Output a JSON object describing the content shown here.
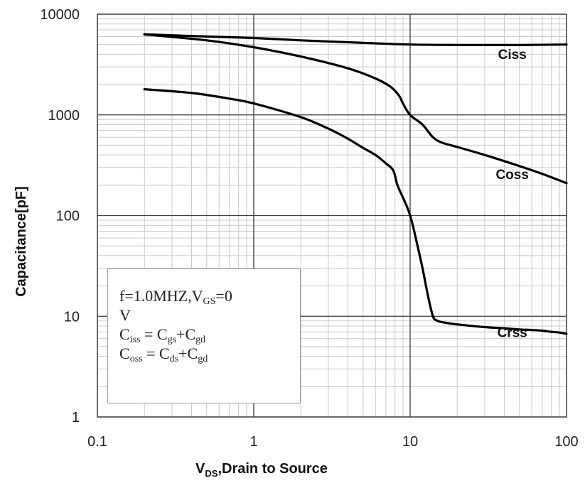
{
  "chart_data": {
    "type": "line",
    "x_scale": "log",
    "y_scale": "log",
    "xlim": [
      0.1,
      100
    ],
    "ylim": [
      1,
      10000
    ],
    "grid": true,
    "x_ticks": [
      "0.1",
      "1",
      "10",
      "100"
    ],
    "y_ticks": [
      "1",
      "10",
      "100",
      "1000",
      "10000"
    ],
    "ylabel": "Capacitance[pF]",
    "xlabel": {
      "main": "V",
      "sub": "DS",
      "rest": ",Drain to Source"
    },
    "series": [
      {
        "name": "Ciss",
        "label_at": [
          45,
          3600
        ],
        "points": [
          [
            0.2,
            6300
          ],
          [
            0.5,
            6000
          ],
          [
            1,
            5800
          ],
          [
            2,
            5500
          ],
          [
            5,
            5200
          ],
          [
            10,
            5000
          ],
          [
            20,
            4950
          ],
          [
            50,
            4950
          ],
          [
            100,
            5000
          ]
        ]
      },
      {
        "name": "Coss",
        "label_at": [
          45,
          230
        ],
        "points": [
          [
            0.2,
            6300
          ],
          [
            0.5,
            5500
          ],
          [
            1,
            4700
          ],
          [
            2,
            3800
          ],
          [
            4,
            2900
          ],
          [
            6,
            2300
          ],
          [
            7.5,
            1900
          ],
          [
            8.5,
            1550
          ],
          [
            9,
            1300
          ],
          [
            10,
            1000
          ],
          [
            12,
            800
          ],
          [
            14,
            600
          ],
          [
            16,
            530
          ],
          [
            20,
            480
          ],
          [
            30,
            400
          ],
          [
            50,
            310
          ],
          [
            70,
            260
          ],
          [
            100,
            210
          ]
        ]
      },
      {
        "name": "Crss",
        "label_at": [
          45,
          6.2
        ],
        "points": [
          [
            0.2,
            1800
          ],
          [
            0.4,
            1650
          ],
          [
            0.7,
            1450
          ],
          [
            1,
            1300
          ],
          [
            2,
            950
          ],
          [
            3,
            730
          ],
          [
            4,
            580
          ],
          [
            5,
            470
          ],
          [
            6,
            400
          ],
          [
            7,
            330
          ],
          [
            7.8,
            280
          ],
          [
            8.3,
            200
          ],
          [
            9.2,
            140
          ],
          [
            9.8,
            110
          ],
          [
            10.3,
            85
          ],
          [
            11,
            55
          ],
          [
            12,
            30
          ],
          [
            13,
            16
          ],
          [
            14,
            10
          ],
          [
            15,
            9
          ],
          [
            17,
            8.6
          ],
          [
            20,
            8.3
          ],
          [
            30,
            7.8
          ],
          [
            40,
            7.6
          ],
          [
            50,
            7.4
          ],
          [
            60,
            7.3
          ],
          [
            70,
            7.2
          ],
          [
            80,
            7.0
          ],
          [
            90,
            6.9
          ],
          [
            100,
            6.7
          ]
        ]
      }
    ]
  },
  "annotation": {
    "line1": {
      "text": "f=1.0MHZ,V",
      "sub": "GS",
      "after": "=0"
    },
    "line2": "V",
    "line3": {
      "a": "C",
      "a_sub": "iss",
      "mid": " = C",
      "b_sub": "gs",
      "plus": "+C",
      "c_sub": "gd"
    },
    "line4": {
      "a": "C",
      "a_sub": "oss",
      "mid": " = C",
      "b_sub": "ds",
      "plus": "+C",
      "c_sub": "gd"
    }
  },
  "colors": {
    "line": "#000000",
    "major_grid": "#3a3a3a",
    "minor_grid": "#c8c8c8"
  }
}
